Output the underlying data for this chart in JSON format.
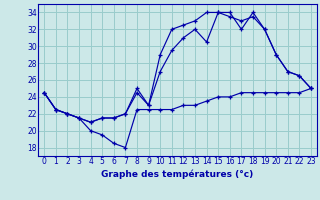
{
  "xlabel": "Graphe des températures (°c)",
  "bg_color": "#cce8e8",
  "grid_color": "#99cccc",
  "line_color": "#0000aa",
  "ylim": [
    17,
    35
  ],
  "xlim": [
    -0.5,
    23.5
  ],
  "yticks": [
    18,
    20,
    22,
    24,
    26,
    28,
    30,
    32,
    34
  ],
  "xticks": [
    0,
    1,
    2,
    3,
    4,
    5,
    6,
    7,
    8,
    9,
    10,
    11,
    12,
    13,
    14,
    15,
    16,
    17,
    18,
    19,
    20,
    21,
    22,
    23
  ],
  "xtick_labels": [
    "0",
    "1",
    "2",
    "3",
    "4",
    "5",
    "6",
    "7",
    "8",
    "9",
    "10",
    "11",
    "12",
    "13",
    "14",
    "15",
    "16",
    "17",
    "18",
    "19",
    "20",
    "21",
    "22",
    "23"
  ],
  "series": [
    {
      "x": [
        0,
        1,
        2,
        3,
        4,
        5,
        6,
        7,
        8,
        9,
        10,
        11,
        12,
        13,
        14,
        15,
        16,
        17,
        18,
        19,
        20,
        21,
        22,
        23
      ],
      "y": [
        24.5,
        22.5,
        22.0,
        21.5,
        20.0,
        19.5,
        18.5,
        18.0,
        22.5,
        22.5,
        22.5,
        22.5,
        23.0,
        23.0,
        23.5,
        24.0,
        24.0,
        24.5,
        24.5,
        24.5,
        24.5,
        24.5,
        24.5,
        25.0
      ]
    },
    {
      "x": [
        0,
        1,
        2,
        3,
        4,
        5,
        6,
        7,
        8,
        9,
        10,
        11,
        12,
        13,
        14,
        15,
        16,
        17,
        18,
        19,
        20,
        21,
        22,
        23
      ],
      "y": [
        24.5,
        22.5,
        22.0,
        21.5,
        21.0,
        21.5,
        21.5,
        22.0,
        25.0,
        23.0,
        27.0,
        29.5,
        31.0,
        32.0,
        30.5,
        34.0,
        34.0,
        32.0,
        34.0,
        32.0,
        29.0,
        27.0,
        26.5,
        25.0
      ]
    },
    {
      "x": [
        0,
        1,
        2,
        3,
        4,
        5,
        6,
        7,
        8,
        9,
        10,
        11,
        12,
        13,
        14,
        15,
        16,
        17,
        18,
        19,
        20,
        21,
        22,
        23
      ],
      "y": [
        24.5,
        22.5,
        22.0,
        21.5,
        21.0,
        21.5,
        21.5,
        22.0,
        24.5,
        23.0,
        29.0,
        32.0,
        32.5,
        33.0,
        34.0,
        34.0,
        33.5,
        33.0,
        33.5,
        32.0,
        29.0,
        27.0,
        26.5,
        25.0
      ]
    }
  ]
}
